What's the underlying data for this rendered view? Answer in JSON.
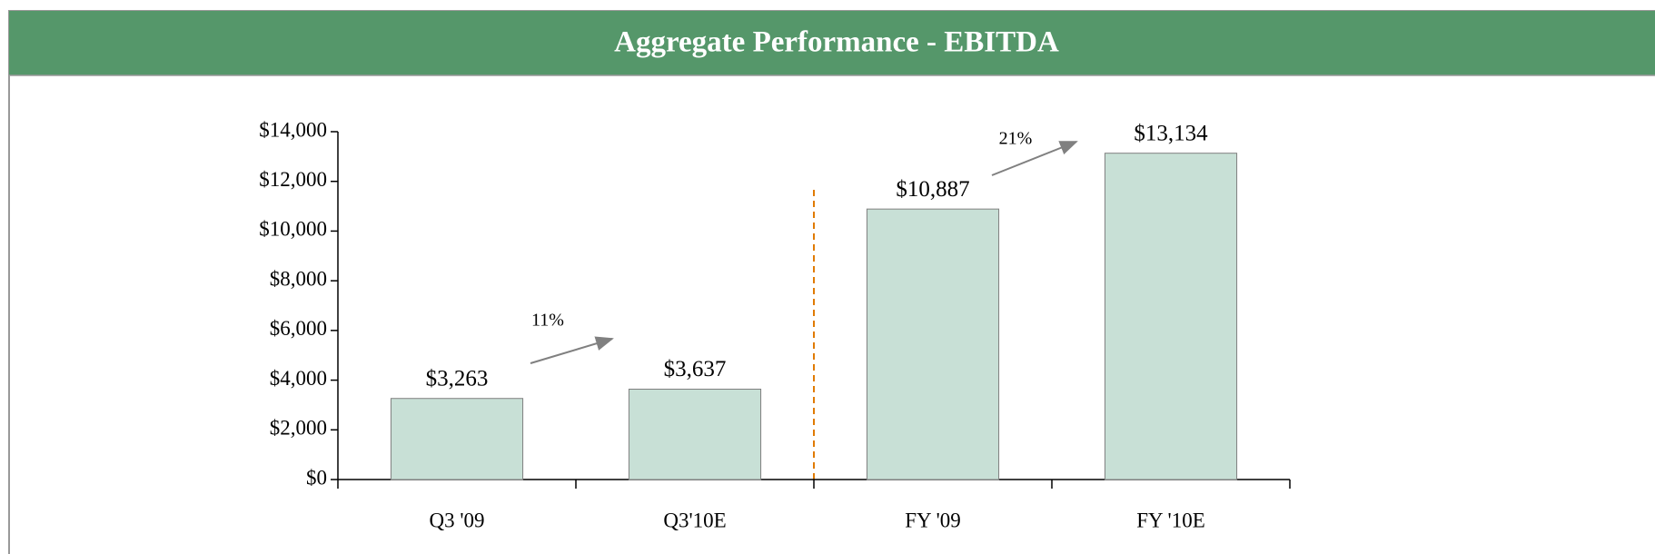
{
  "chart_data": {
    "type": "bar",
    "title": "Aggregate Performance - EBITDA",
    "categories": [
      "Q3 '09",
      "Q3'10E",
      "FY '09",
      "FY '10E"
    ],
    "values": [
      3263,
      3637,
      10887,
      13134
    ],
    "value_labels": [
      "$3,263",
      "$3,637",
      "$10,887",
      "$13,134"
    ],
    "color": "#c8e0d6",
    "ylim": [
      0,
      14000
    ],
    "yticks": [
      {
        "value": 0,
        "label": "$0"
      },
      {
        "value": 2000,
        "label": "$2,000"
      },
      {
        "value": 4000,
        "label": "$4,000"
      },
      {
        "value": 6000,
        "label": "$6,000"
      },
      {
        "value": 8000,
        "label": "$8,000"
      },
      {
        "value": 10000,
        "label": "$10,000"
      },
      {
        "value": 12000,
        "label": "$12,000"
      },
      {
        "value": 14000,
        "label": "$14,000"
      }
    ],
    "annotations": [
      "11%",
      "21%"
    ]
  }
}
